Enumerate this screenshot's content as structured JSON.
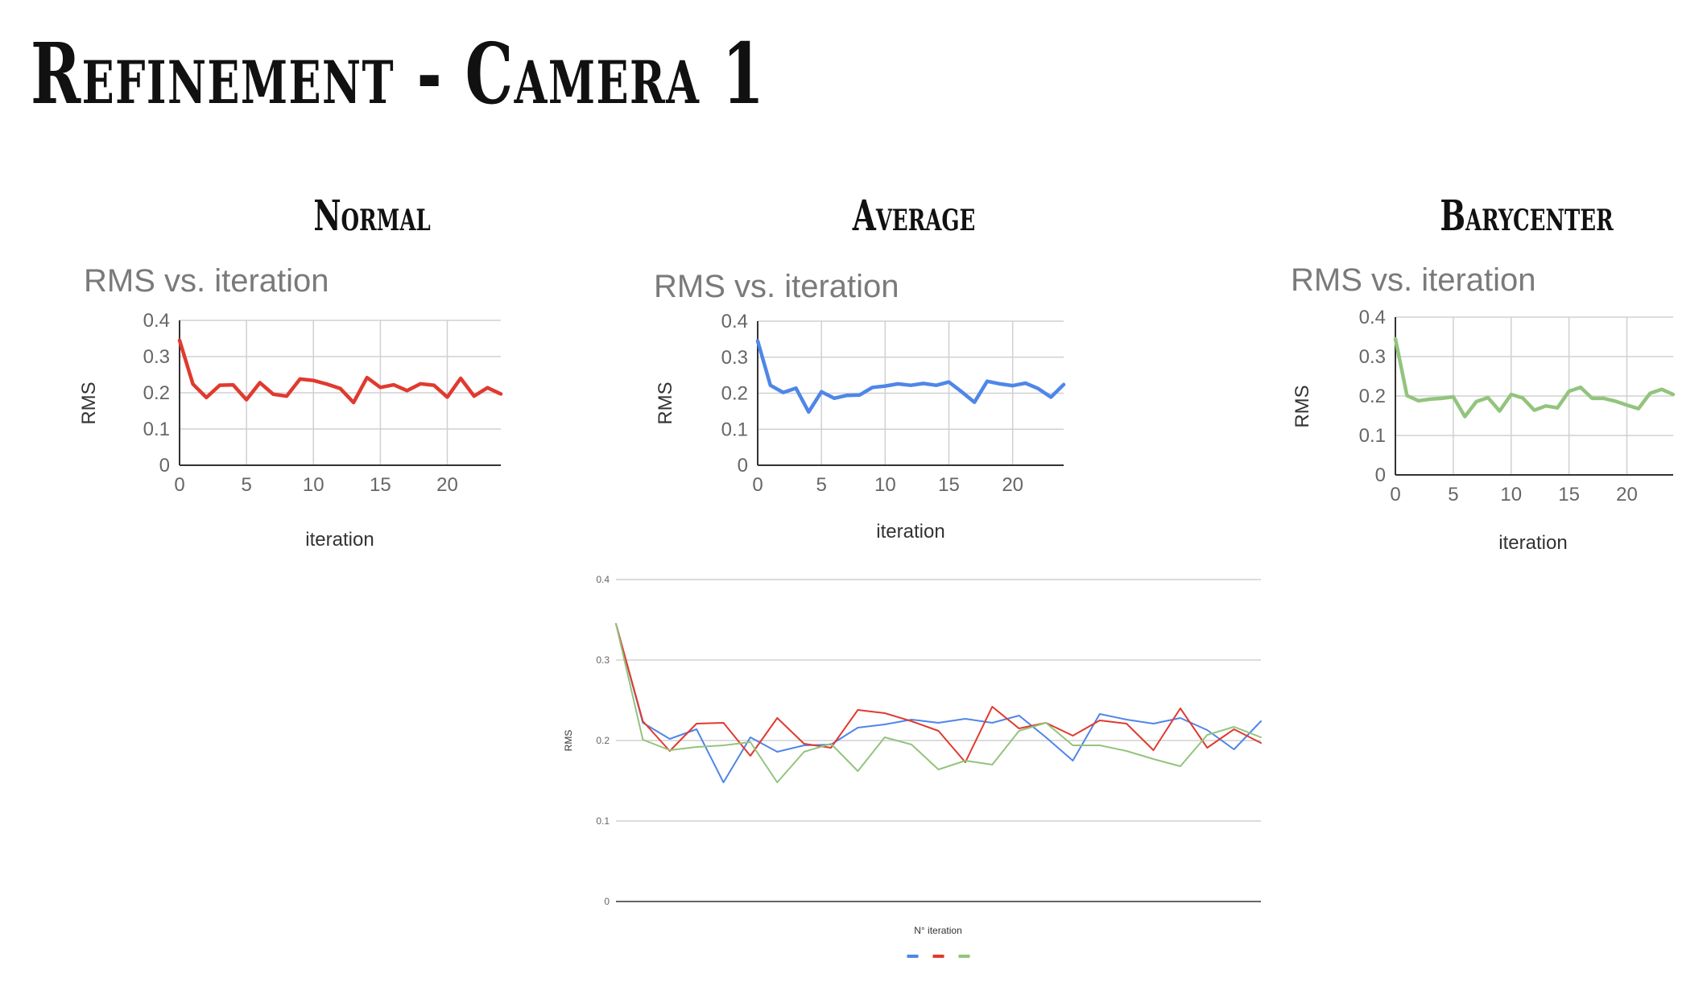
{
  "slide": {
    "title": "Refinement - Camera 1"
  },
  "sections": [
    {
      "id": "normal",
      "label": "Normal"
    },
    {
      "id": "average",
      "label": "Average"
    },
    {
      "id": "barycenter",
      "label": "Barycenter"
    }
  ],
  "colors": {
    "normal": "#e03a2f",
    "average": "#4f86e8",
    "barycenter": "#93c47d"
  },
  "chart_data": [
    {
      "id": "normal",
      "type": "line",
      "title": "RMS vs. iteration",
      "xlabel": "iteration",
      "ylabel": "RMS",
      "xlim": [
        0,
        24
      ],
      "ylim": [
        0,
        0.4
      ],
      "xticks": [
        "0",
        "5",
        "10",
        "15",
        "20"
      ],
      "yticks": [
        "0",
        "0.1",
        "0.2",
        "0.3",
        "0.4"
      ],
      "grid": true,
      "series": [
        {
          "color": "#e03a2f",
          "x": [
            0,
            1,
            2,
            3,
            4,
            5,
            6,
            7,
            8,
            9,
            10,
            11,
            12,
            13,
            14,
            15,
            16,
            17,
            18,
            19,
            20,
            21,
            22,
            23,
            24
          ],
          "values": [
            0.345,
            0.224,
            0.187,
            0.221,
            0.222,
            0.181,
            0.228,
            0.196,
            0.191,
            0.238,
            0.234,
            0.224,
            0.212,
            0.173,
            0.242,
            0.215,
            0.222,
            0.206,
            0.225,
            0.221,
            0.188,
            0.24,
            0.191,
            0.214,
            0.197
          ]
        }
      ]
    },
    {
      "id": "average",
      "type": "line",
      "title": "RMS vs. iteration",
      "xlabel": "iteration",
      "ylabel": "RMS",
      "xlim": [
        0,
        24
      ],
      "ylim": [
        0,
        0.4
      ],
      "xticks": [
        "0",
        "5",
        "10",
        "15",
        "20"
      ],
      "yticks": [
        "0",
        "0.1",
        "0.2",
        "0.3",
        "0.4"
      ],
      "grid": true,
      "series": [
        {
          "color": "#4f86e8",
          "x": [
            0,
            1,
            2,
            3,
            4,
            5,
            6,
            7,
            8,
            9,
            10,
            11,
            12,
            13,
            14,
            15,
            16,
            17,
            18,
            19,
            20,
            21,
            22,
            23,
            24
          ],
          "values": [
            0.345,
            0.222,
            0.202,
            0.214,
            0.148,
            0.204,
            0.186,
            0.194,
            0.195,
            0.216,
            0.22,
            0.226,
            0.222,
            0.227,
            0.222,
            0.231,
            0.204,
            0.175,
            0.233,
            0.226,
            0.221,
            0.228,
            0.213,
            0.189,
            0.224
          ]
        }
      ]
    },
    {
      "id": "barycenter",
      "type": "line",
      "title": "RMS vs. iteration",
      "xlabel": "iteration",
      "ylabel": "RMS",
      "xlim": [
        0,
        24
      ],
      "ylim": [
        0,
        0.4
      ],
      "xticks": [
        "0",
        "5",
        "10",
        "15",
        "20"
      ],
      "yticks": [
        "0",
        "0.1",
        "0.2",
        "0.3",
        "0.4"
      ],
      "grid": true,
      "series": [
        {
          "color": "#93c47d",
          "x": [
            0,
            1,
            2,
            3,
            4,
            5,
            6,
            7,
            8,
            9,
            10,
            11,
            12,
            13,
            14,
            15,
            16,
            17,
            18,
            19,
            20,
            21,
            22,
            23,
            24
          ],
          "values": [
            0.345,
            0.201,
            0.188,
            0.192,
            0.194,
            0.198,
            0.148,
            0.186,
            0.196,
            0.162,
            0.204,
            0.195,
            0.164,
            0.175,
            0.17,
            0.212,
            0.222,
            0.194,
            0.194,
            0.187,
            0.177,
            0.168,
            0.207,
            0.217,
            0.204
          ]
        }
      ]
    },
    {
      "id": "combined",
      "type": "line",
      "title": "",
      "xlabel": "N° iteration",
      "ylabel": "RMS",
      "xlim": [
        0,
        24
      ],
      "ylim": [
        0,
        0.4
      ],
      "yticks": [
        "0",
        "0.1",
        "0.2",
        "0.3",
        "0.4"
      ],
      "grid": true,
      "legend": "bottom",
      "series": [
        {
          "color": "#4f86e8",
          "values": [
            0.345,
            0.222,
            0.202,
            0.214,
            0.148,
            0.204,
            0.186,
            0.194,
            0.195,
            0.216,
            0.22,
            0.226,
            0.222,
            0.227,
            0.222,
            0.231,
            0.204,
            0.175,
            0.233,
            0.226,
            0.221,
            0.228,
            0.213,
            0.189,
            0.224
          ]
        },
        {
          "color": "#e03a2f",
          "values": [
            0.345,
            0.224,
            0.187,
            0.221,
            0.222,
            0.181,
            0.228,
            0.196,
            0.191,
            0.238,
            0.234,
            0.224,
            0.212,
            0.173,
            0.242,
            0.215,
            0.222,
            0.206,
            0.225,
            0.221,
            0.188,
            0.24,
            0.191,
            0.214,
            0.197
          ]
        },
        {
          "color": "#93c47d",
          "values": [
            0.345,
            0.201,
            0.188,
            0.192,
            0.194,
            0.198,
            0.148,
            0.186,
            0.196,
            0.162,
            0.204,
            0.195,
            0.164,
            0.175,
            0.17,
            0.212,
            0.222,
            0.194,
            0.194,
            0.187,
            0.177,
            0.168,
            0.207,
            0.217,
            0.204
          ]
        }
      ]
    }
  ]
}
